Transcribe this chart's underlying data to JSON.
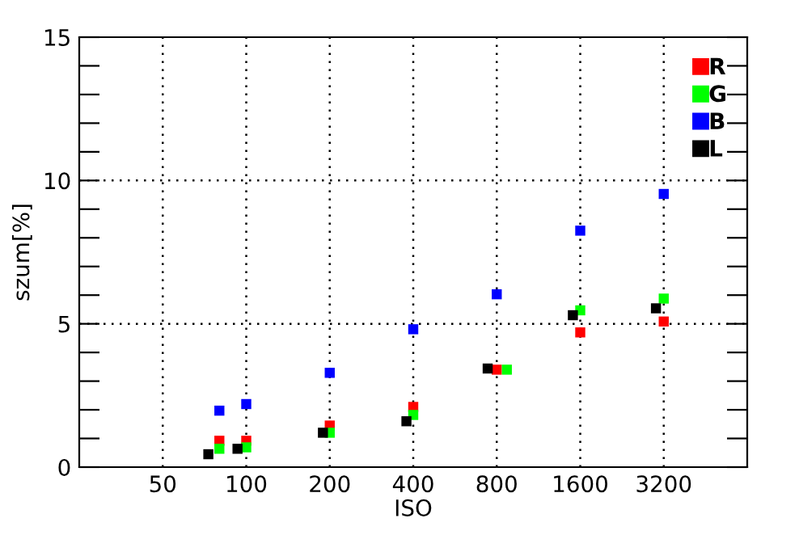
{
  "chart_data": {
    "type": "scatter",
    "xlabel": "ISO",
    "ylabel": "szum[%]",
    "log": "x",
    "xlim": [
      25,
      6400
    ],
    "xticks": [
      50,
      100,
      200,
      400,
      800,
      1600,
      3200
    ],
    "ylim": [
      0,
      15
    ],
    "yticks": [
      0,
      {
        "value": 1,
        "label": null
      },
      {
        "value": 2,
        "label": null
      },
      {
        "value": 3,
        "label": null
      },
      {
        "value": 4,
        "label": null
      },
      5,
      {
        "value": 6,
        "label": null
      },
      {
        "value": 7,
        "label": null
      },
      {
        "value": 8,
        "label": null
      },
      {
        "value": 9,
        "label": null
      },
      10,
      {
        "value": 11,
        "label": null
      },
      {
        "value": 12,
        "label": null
      },
      {
        "value": 13,
        "label": null
      },
      {
        "value": 14,
        "label": null
      },
      15
    ],
    "grid": true,
    "legend": "top right",
    "marker": "square",
    "series": [
      {
        "name": "R",
        "color": "#ff0000",
        "x": [
          80,
          100,
          200,
          400,
          800,
          1600,
          3200
        ],
        "values": [
          0.92,
          0.92,
          1.45,
          2.1,
          3.4,
          4.7,
          5.08
        ]
      },
      {
        "name": "G",
        "color": "#00ff00",
        "x": [
          80,
          100,
          200,
          400,
          870,
          1600,
          3200
        ],
        "values": [
          0.64,
          0.69,
          1.2,
          1.82,
          3.4,
          5.47,
          5.88
        ]
      },
      {
        "name": "B",
        "color": "#0000ff",
        "x": [
          80,
          100,
          200,
          400,
          800,
          1600,
          3200
        ],
        "values": [
          1.97,
          2.2,
          3.29,
          4.81,
          6.03,
          8.25,
          9.53
        ]
      },
      {
        "name": "L",
        "color": "#000000",
        "x": [
          73,
          93,
          189,
          378,
          742,
          1505,
          3000
        ],
        "values": [
          0.45,
          0.64,
          1.2,
          1.6,
          3.44,
          5.3,
          5.54
        ]
      }
    ]
  }
}
